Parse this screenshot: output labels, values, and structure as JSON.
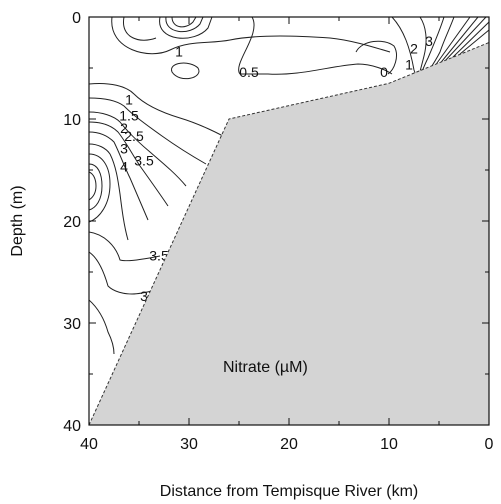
{
  "chart_data": {
    "type": "contour",
    "xlabel": "Distance from Tempisque River (km)",
    "ylabel": "Depth (m)",
    "x_ticks": [
      "40",
      "30",
      "20",
      "10",
      "0"
    ],
    "y_ticks": [
      "0",
      "10",
      "20",
      "30",
      "40"
    ],
    "xlim": [
      40,
      0
    ],
    "ylim": [
      0,
      40
    ],
    "y_inverted": true,
    "annotation": "Nitrate (µM)",
    "bathymetry_fill": "#d4d4d4",
    "bathymetry_profile": [
      {
        "distance": 40,
        "depth": 40
      },
      {
        "distance": 26,
        "depth": 10
      },
      {
        "distance": 10,
        "depth": 6.5
      },
      {
        "distance": 0,
        "depth": 2.5
      }
    ],
    "contour_labels": [
      {
        "text": "1",
        "distance": 31,
        "depth": 3.5
      },
      {
        "text": "0.5",
        "distance": 24,
        "depth": 5.5
      },
      {
        "text": "0",
        "distance": 10.5,
        "depth": 5.5
      },
      {
        "text": "2",
        "distance": 7.5,
        "depth": 3.2
      },
      {
        "text": "3",
        "distance": 6,
        "depth": 2.5
      },
      {
        "text": "1",
        "distance": 8,
        "depth": 4.8
      },
      {
        "text": "1",
        "distance": 36,
        "depth": 8.2
      },
      {
        "text": "1.5",
        "distance": 36,
        "depth": 9.8
      },
      {
        "text": "2",
        "distance": 36.5,
        "depth": 11
      },
      {
        "text": "2.5",
        "distance": 35.5,
        "depth": 11.8
      },
      {
        "text": "3",
        "distance": 36.5,
        "depth": 13
      },
      {
        "text": "3.5",
        "distance": 34.5,
        "depth": 14.2
      },
      {
        "text": "4",
        "distance": 36.5,
        "depth": 14.8
      },
      {
        "text": "3.5",
        "distance": 33,
        "depth": 23.5
      },
      {
        "text": "3",
        "distance": 34.5,
        "depth": 27.5
      }
    ]
  }
}
